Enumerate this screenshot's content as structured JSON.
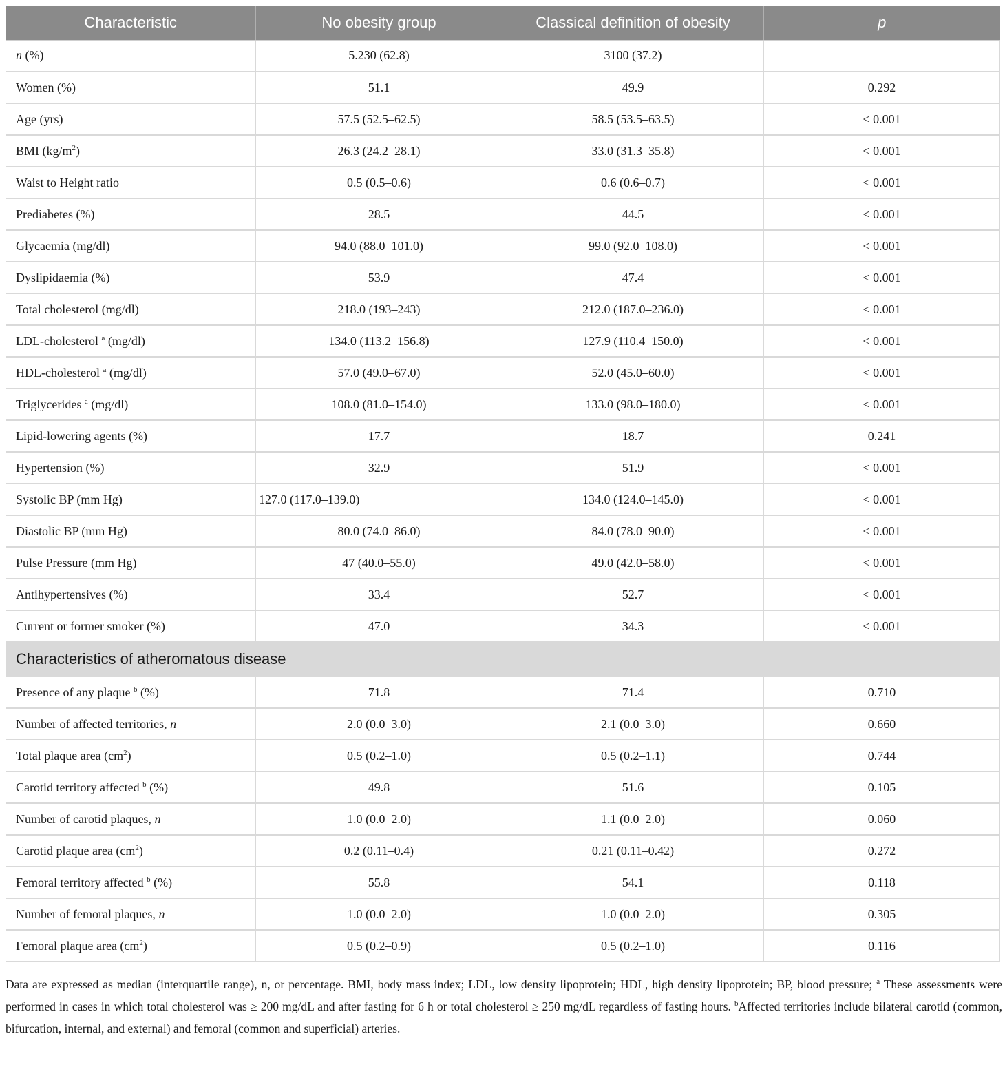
{
  "theme": {
    "header_bg": "#8a8a8a",
    "header_text": "#ffffff",
    "section_bg": "#d9d9d9",
    "border": "#d9d9d9",
    "text": "#1c1c1c"
  },
  "table": {
    "columns": [
      {
        "label": "Characteristic"
      },
      {
        "label": "No obesity group"
      },
      {
        "label": "Classical definition of obesity"
      },
      {
        "label": "p",
        "italic": true
      }
    ],
    "rows": [
      {
        "label": [
          {
            "i": "n"
          },
          {
            "t": " (%)"
          }
        ],
        "no_obesity": "5.230 (62.8)",
        "classical": "3100 (37.2)",
        "p": "–"
      },
      {
        "label": [
          {
            "t": "Women (%)"
          }
        ],
        "no_obesity": "51.1",
        "classical": "49.9",
        "p": "0.292"
      },
      {
        "label": [
          {
            "t": "Age (yrs)"
          }
        ],
        "no_obesity": "57.5 (52.5–62.5)",
        "classical": "58.5 (53.5–63.5)",
        "p": "< 0.001"
      },
      {
        "label": [
          {
            "t": "BMI (kg/m"
          },
          {
            "sup": "2"
          },
          {
            "t": ")"
          }
        ],
        "no_obesity": "26.3 (24.2–28.1)",
        "classical": "33.0 (31.3–35.8)",
        "p": "< 0.001"
      },
      {
        "label": [
          {
            "t": "Waist to Height ratio"
          }
        ],
        "no_obesity": "0.5 (0.5–0.6)",
        "classical": "0.6 (0.6–0.7)",
        "p": "< 0.001"
      },
      {
        "label": [
          {
            "t": "Prediabetes (%)"
          }
        ],
        "no_obesity": "28.5",
        "classical": "44.5",
        "p": "< 0.001"
      },
      {
        "label": [
          {
            "t": "Glycaemia (mg/dl)"
          }
        ],
        "no_obesity": "94.0 (88.0–101.0)",
        "classical": "99.0 (92.0–108.0)",
        "p": "< 0.001"
      },
      {
        "label": [
          {
            "t": "Dyslipidaemia (%)"
          }
        ],
        "no_obesity": "53.9",
        "classical": "47.4",
        "p": "< 0.001"
      },
      {
        "label": [
          {
            "t": "Total cholesterol (mg/dl)"
          }
        ],
        "no_obesity": "218.0 (193–243)",
        "classical": "212.0 (187.0–236.0)",
        "p": "< 0.001"
      },
      {
        "label": [
          {
            "t": "LDL-cholesterol "
          },
          {
            "sup": "a"
          },
          {
            "t": " (mg/dl)"
          }
        ],
        "no_obesity": "134.0 (113.2–156.8)",
        "classical": "127.9 (110.4–150.0)",
        "p": "< 0.001"
      },
      {
        "label": [
          {
            "t": "HDL-cholesterol "
          },
          {
            "sup": "a"
          },
          {
            "t": " (mg/dl)"
          }
        ],
        "no_obesity": "57.0 (49.0–67.0)",
        "classical": "52.0 (45.0–60.0)",
        "p": "< 0.001"
      },
      {
        "label": [
          {
            "t": "Triglycerides "
          },
          {
            "sup": "a"
          },
          {
            "t": " (mg/dl)"
          }
        ],
        "no_obesity": "108.0 (81.0–154.0)",
        "classical": "133.0 (98.0–180.0)",
        "p": "< 0.001"
      },
      {
        "label": [
          {
            "t": "Lipid-lowering agents (%)"
          }
        ],
        "no_obesity": "17.7",
        "classical": "18.7",
        "p": "0.241"
      },
      {
        "label": [
          {
            "t": "Hypertension (%)"
          }
        ],
        "no_obesity": "32.9",
        "classical": "51.9",
        "p": "< 0.001"
      },
      {
        "label": [
          {
            "t": "Systolic BP (mm Hg)"
          }
        ],
        "no_obesity": "127.0 (117.0–139.0)",
        "classical": "134.0 (124.0–145.0)",
        "p": "< 0.001",
        "align1": "left"
      },
      {
        "label": [
          {
            "t": "Diastolic BP (mm Hg)"
          }
        ],
        "no_obesity": "80.0 (74.0–86.0)",
        "classical": "84.0 (78.0–90.0)",
        "p": "< 0.001"
      },
      {
        "label": [
          {
            "t": "Pulse Pressure (mm Hg)"
          }
        ],
        "no_obesity": "47 (40.0–55.0)",
        "classical": "49.0 (42.0–58.0)",
        "p": "< 0.001"
      },
      {
        "label": [
          {
            "t": "Antihypertensives (%)"
          }
        ],
        "no_obesity": "33.4",
        "classical": "52.7",
        "p": "< 0.001"
      },
      {
        "label": [
          {
            "t": "Current or former smoker (%)"
          }
        ],
        "no_obesity": "47.0",
        "classical": "34.3",
        "p": "< 0.001"
      },
      {
        "section": "Characteristics of atheromatous disease"
      },
      {
        "label": [
          {
            "t": "Presence of any plaque "
          },
          {
            "sup": "b"
          },
          {
            "t": " (%)"
          }
        ],
        "no_obesity": "71.8",
        "classical": "71.4",
        "p": "0.710"
      },
      {
        "label": [
          {
            "t": "Number of affected territories, "
          },
          {
            "i": "n"
          }
        ],
        "no_obesity": "2.0 (0.0–3.0)",
        "classical": "2.1 (0.0–3.0)",
        "p": "0.660"
      },
      {
        "label": [
          {
            "t": "Total plaque area (cm"
          },
          {
            "sup": "2"
          },
          {
            "t": ")"
          }
        ],
        "no_obesity": "0.5 (0.2–1.0)",
        "classical": "0.5 (0.2–1.1)",
        "p": "0.744"
      },
      {
        "label": [
          {
            "t": "Carotid territory affected "
          },
          {
            "sup": "b"
          },
          {
            "t": " (%)"
          }
        ],
        "no_obesity": "49.8",
        "classical": "51.6",
        "p": "0.105"
      },
      {
        "label": [
          {
            "t": "Number of carotid plaques, "
          },
          {
            "i": "n"
          }
        ],
        "no_obesity": "1.0 (0.0–2.0)",
        "classical": "1.1 (0.0–2.0)",
        "p": "0.060"
      },
      {
        "label": [
          {
            "t": "Carotid plaque area (cm"
          },
          {
            "sup": "2"
          },
          {
            "t": ")"
          }
        ],
        "no_obesity": "0.2 (0.11–0.4)",
        "classical": "0.21 (0.11–0.42)",
        "p": "0.272"
      },
      {
        "label": [
          {
            "t": "Femoral territory affected "
          },
          {
            "sup": "b"
          },
          {
            "t": " (%)"
          }
        ],
        "no_obesity": "55.8",
        "classical": "54.1",
        "p": "0.118"
      },
      {
        "label": [
          {
            "t": "Number of femoral plaques, "
          },
          {
            "i": "n"
          }
        ],
        "no_obesity": "1.0 (0.0–2.0)",
        "classical": "1.0 (0.0–2.0)",
        "p": "0.305"
      },
      {
        "label": [
          {
            "t": "Femoral plaque area (cm"
          },
          {
            "sup": "2"
          },
          {
            "t": ")"
          }
        ],
        "no_obesity": "0.5 (0.2–0.9)",
        "classical": "0.5 (0.2–1.0)",
        "p": "0.116"
      }
    ]
  },
  "footnote": {
    "parts": [
      {
        "t": "Data are expressed as median (interquartile range), n, or percentage. BMI, body mass index; LDL, low density lipoprotein; HDL, high density lipoprotein; BP, blood pressure; "
      },
      {
        "sup": "a"
      },
      {
        "t": " These assessments were performed in cases in which total cholesterol was ≥ 200 mg/dL and after fasting for 6 h or total cholesterol ≥ 250 mg/dL regardless of fasting hours. "
      },
      {
        "sup": "b"
      },
      {
        "t": "Affected territories include bilateral carotid (common, bifurcation, internal, and external) and femoral (common and superficial) arteries."
      }
    ]
  }
}
